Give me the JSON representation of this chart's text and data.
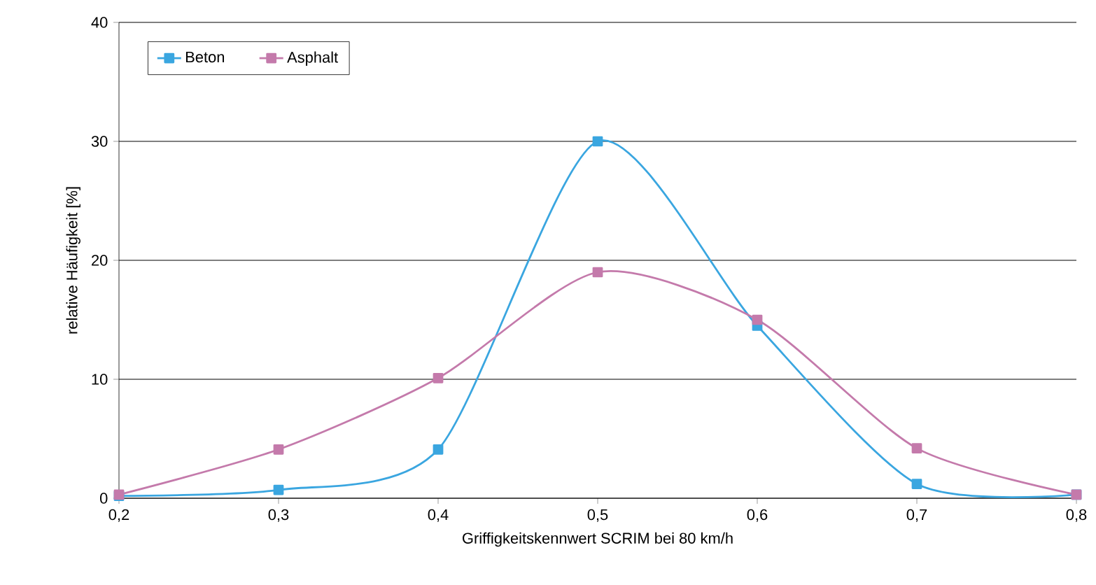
{
  "chart_data": {
    "type": "line",
    "xlabel": "Griffigkeitskennwert SCRIM bei 80 km/h",
    "ylabel": "relative Häufigkeit [%]",
    "x": [
      0.2,
      0.3,
      0.4,
      0.5,
      0.6,
      0.7,
      0.8
    ],
    "series": [
      {
        "name": "Beton",
        "color": "#3aa6e0",
        "values": [
          0.2,
          0.7,
          4.1,
          30,
          14.5,
          1.2,
          0.3
        ]
      },
      {
        "name": "Asphalt",
        "color": "#c47aab",
        "values": [
          0.3,
          4.1,
          10.1,
          19,
          15,
          4.2,
          0.3
        ]
      }
    ],
    "xlim": [
      0.2,
      0.8
    ],
    "ylim": [
      0,
      40
    ],
    "xticks": [
      {
        "value": 0.2,
        "label": "0,2"
      },
      {
        "value": 0.3,
        "label": "0,3"
      },
      {
        "value": 0.4,
        "label": "0,4"
      },
      {
        "value": 0.5,
        "label": "0,5"
      },
      {
        "value": 0.6,
        "label": "0,6"
      },
      {
        "value": 0.7,
        "label": "0,7"
      },
      {
        "value": 0.8,
        "label": "0,8"
      }
    ],
    "yticks": [
      0,
      10,
      20,
      30,
      40
    ],
    "grid": "y",
    "legend": "top left",
    "marker": "square",
    "line_style": "solid"
  }
}
